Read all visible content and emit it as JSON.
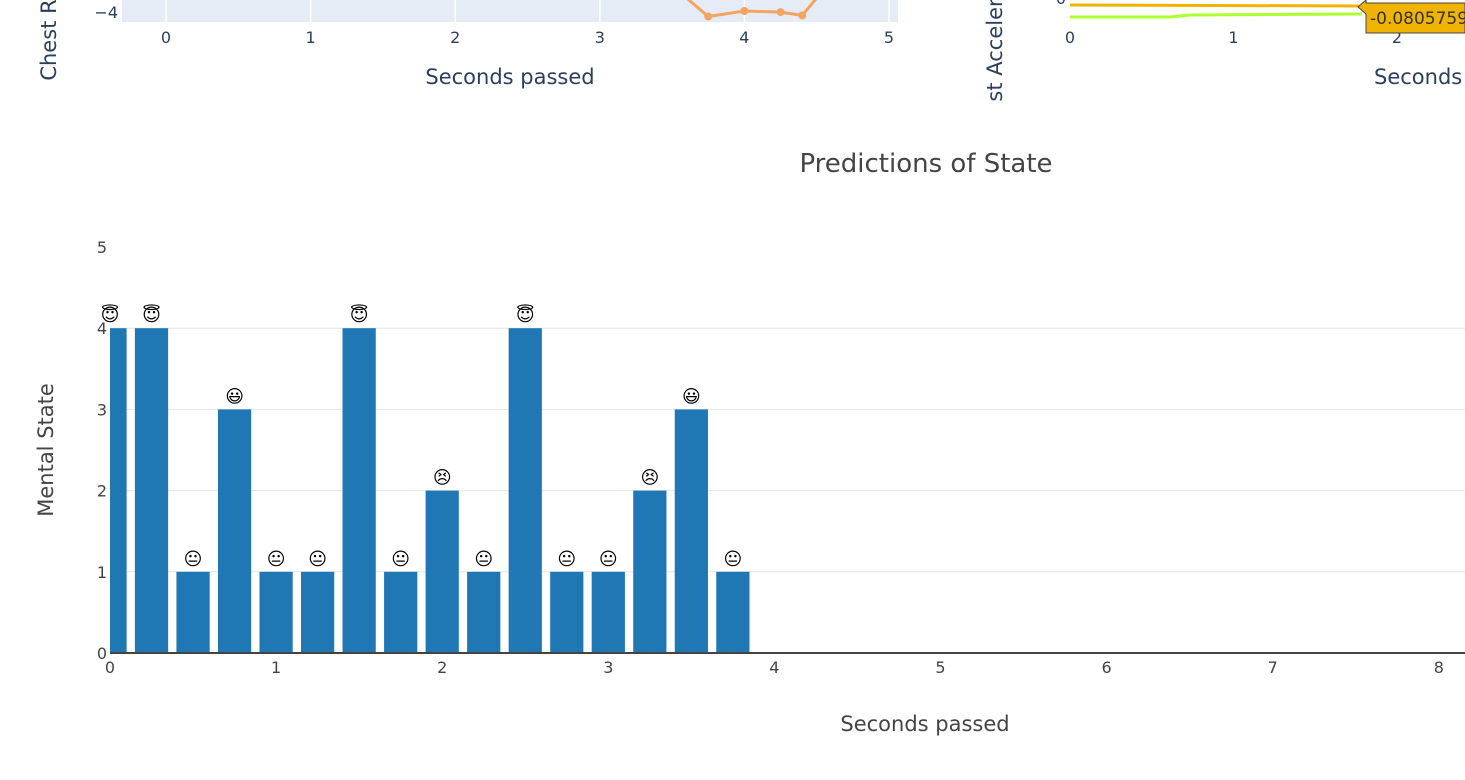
{
  "top_left_panel": {
    "ylabel": "Chest R",
    "xlabel": "Seconds passed",
    "x_ticks": [
      "0",
      "1",
      "2",
      "3",
      "4",
      "5"
    ],
    "y_tick": "−4",
    "trace_color": "#f4a460",
    "trace_points": [
      {
        "x": 3.75,
        "y": -3.5
      },
      {
        "x": 4.0,
        "y": -4.0
      },
      {
        "x": 4.25,
        "y": -3.9
      },
      {
        "x": 4.4,
        "y": -3.6
      }
    ]
  },
  "top_right_panel": {
    "ylabel": "st Acceler",
    "xlabel": "Seconds",
    "x_ticks": [
      "0",
      "1",
      "2"
    ],
    "y_tick": "0",
    "tooltip": "-0.0805759",
    "tooltip_color": "#f0b400",
    "series_colors": [
      "#f0b400",
      "#adff2f"
    ]
  },
  "chart_data": {
    "type": "bar",
    "title": "Predictions of State",
    "xlabel": "Seconds passed",
    "ylabel": "Mental State",
    "x": [
      0,
      0.25,
      0.5,
      0.75,
      1.0,
      1.25,
      1.5,
      1.75,
      2.0,
      2.25,
      2.5,
      2.75,
      3.0,
      3.25,
      3.5,
      3.75
    ],
    "values": [
      4,
      4,
      1,
      3,
      1,
      1,
      4,
      1,
      2,
      1,
      4,
      1,
      1,
      2,
      3,
      1
    ],
    "emoji": [
      "😇",
      "😇",
      "😐",
      "😃",
      "😐",
      "😐",
      "😇",
      "😐",
      "😣",
      "😐",
      "😇",
      "😐",
      "😐",
      "😣",
      "😃",
      "😐"
    ],
    "xlim": [
      0,
      8
    ],
    "ylim": [
      0,
      5
    ],
    "x_ticks": [
      "0",
      "1",
      "2",
      "3",
      "4",
      "5",
      "6",
      "7",
      "8"
    ],
    "y_ticks": [
      "0",
      "1",
      "2",
      "3",
      "4",
      "5"
    ],
    "bar_color": "#1f77b4",
    "grid": true
  }
}
